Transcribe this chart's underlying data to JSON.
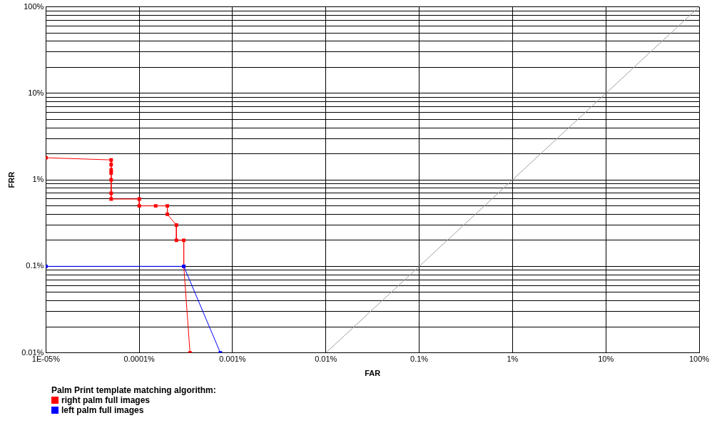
{
  "chart_data": {
    "type": "line",
    "xlabel": "FAR",
    "ylabel": "FRR",
    "legend_title": "Palm Print template matching algorithm:",
    "legend": "bottom left",
    "log": "xy",
    "grid": true,
    "marker": "square",
    "xlim": [
      1e-05,
      100
    ],
    "ylim": [
      0.01,
      100
    ],
    "xticks": [
      {
        "value": 1e-05,
        "label": "1E-05%"
      },
      {
        "value": 0.0001,
        "label": "0.0001%"
      },
      {
        "value": 0.001,
        "label": "0.001%"
      },
      {
        "value": 0.01,
        "label": "0.01%"
      },
      {
        "value": 0.1,
        "label": "0.1%"
      },
      {
        "value": 1,
        "label": "1%"
      },
      {
        "value": 10,
        "label": "10%"
      },
      {
        "value": 100,
        "label": "100%"
      }
    ],
    "yticks": [
      {
        "value": 0.01,
        "label": "0.01%"
      },
      {
        "value": 0.02,
        "label": null
      },
      {
        "value": 0.03,
        "label": null
      },
      {
        "value": 0.04,
        "label": null
      },
      {
        "value": 0.05,
        "label": null
      },
      {
        "value": 0.06,
        "label": null
      },
      {
        "value": 0.07,
        "label": null
      },
      {
        "value": 0.08,
        "label": null
      },
      {
        "value": 0.09,
        "label": null
      },
      {
        "value": 0.1,
        "label": "0.1%"
      },
      {
        "value": 0.2,
        "label": null
      },
      {
        "value": 0.3,
        "label": null
      },
      {
        "value": 0.4,
        "label": null
      },
      {
        "value": 0.5,
        "label": null
      },
      {
        "value": 0.6,
        "label": null
      },
      {
        "value": 0.7,
        "label": null
      },
      {
        "value": 0.8,
        "label": null
      },
      {
        "value": 0.9,
        "label": null
      },
      {
        "value": 1,
        "label": "1%"
      },
      {
        "value": 2,
        "label": null
      },
      {
        "value": 3,
        "label": null
      },
      {
        "value": 4,
        "label": null
      },
      {
        "value": 5,
        "label": null
      },
      {
        "value": 6,
        "label": null
      },
      {
        "value": 7,
        "label": null
      },
      {
        "value": 8,
        "label": null
      },
      {
        "value": 9,
        "label": null
      },
      {
        "value": 10,
        "label": "10%"
      },
      {
        "value": 20,
        "label": null
      },
      {
        "value": 30,
        "label": null
      },
      {
        "value": 40,
        "label": null
      },
      {
        "value": 50,
        "label": null
      },
      {
        "value": 60,
        "label": null
      },
      {
        "value": 70,
        "label": null
      },
      {
        "value": 80,
        "label": null
      },
      {
        "value": 90,
        "label": null
      },
      {
        "value": 100,
        "label": "100%"
      }
    ],
    "series": [
      {
        "name": "right palm full images",
        "color": "#ff0000",
        "x": [
          1e-05,
          5e-05,
          5e-05,
          5e-05,
          5e-05,
          5e-05,
          5e-05,
          5e-05,
          0.0001,
          0.0001,
          0.00015,
          0.0002,
          0.0002,
          0.00025,
          0.00025,
          0.0003,
          0.0003,
          0.00035
        ],
        "values": [
          1.8,
          1.7,
          1.5,
          1.3,
          1.2,
          1.0,
          0.7,
          0.6,
          0.6,
          0.5,
          0.5,
          0.5,
          0.4,
          0.3,
          0.2,
          0.2,
          0.1,
          0.01
        ]
      },
      {
        "name": "left palm full images",
        "color": "#0000ff",
        "x": [
          1e-05,
          0.0003,
          0.00074
        ],
        "values": [
          0.1,
          0.1,
          0.01
        ]
      },
      {
        "color": "#a0a0a0",
        "marker": "none",
        "x": [
          0.01,
          100
        ],
        "values": [
          0.01,
          100
        ]
      }
    ]
  }
}
